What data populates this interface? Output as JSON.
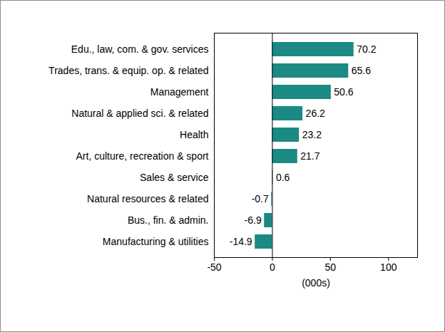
{
  "chart_data": {
    "type": "bar",
    "orientation": "horizontal",
    "categories": [
      "Edu., law, com. & gov. services",
      "Trades, trans. & equip. op. & related",
      "Management",
      "Natural & applied sci. & related",
      "Health",
      "Art, culture, recreation & sport",
      "Sales & service",
      "Natural resources & related",
      "Bus., fin. & admin.",
      "Manufacturing & utilities"
    ],
    "values": [
      70.2,
      65.6,
      50.6,
      26.2,
      23.2,
      21.7,
      0.6,
      -0.7,
      -6.9,
      -14.9
    ],
    "color": "#1b8a84",
    "x_label": "(000s)",
    "xlim": [
      -50,
      125
    ],
    "xticks": [
      -50,
      0,
      50,
      100
    ],
    "grid": false,
    "data_labels": true
  }
}
